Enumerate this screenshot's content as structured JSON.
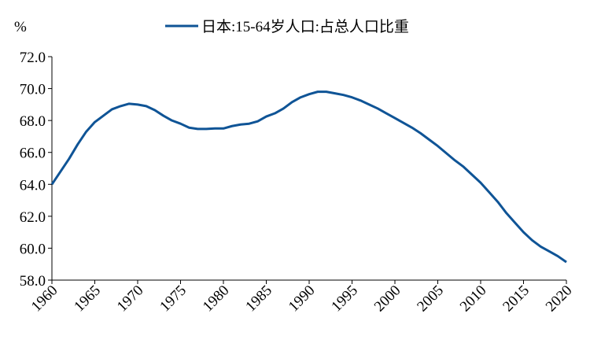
{
  "chart_data": {
    "type": "line",
    "ylabel": "%",
    "x": [
      1960,
      1961,
      1962,
      1963,
      1964,
      1965,
      1966,
      1967,
      1968,
      1969,
      1970,
      1971,
      1972,
      1973,
      1974,
      1975,
      1976,
      1977,
      1978,
      1979,
      1980,
      1981,
      1982,
      1983,
      1984,
      1985,
      1986,
      1987,
      1988,
      1989,
      1990,
      1991,
      1992,
      1993,
      1994,
      1995,
      1996,
      1997,
      1998,
      1999,
      2000,
      2001,
      2002,
      2003,
      2004,
      2005,
      2006,
      2007,
      2008,
      2009,
      2010,
      2011,
      2012,
      2013,
      2014,
      2015,
      2016,
      2017,
      2018,
      2019,
      2020
    ],
    "series": [
      {
        "name": "日本:15-64岁人口:占总人口比重",
        "color": "#0f5496",
        "values": [
          64.0,
          64.8,
          65.6,
          66.5,
          67.3,
          67.9,
          68.3,
          68.7,
          68.9,
          69.05,
          69.0,
          68.9,
          68.65,
          68.3,
          68.0,
          67.8,
          67.55,
          67.47,
          67.47,
          67.5,
          67.5,
          67.65,
          67.75,
          67.8,
          67.95,
          68.25,
          68.45,
          68.75,
          69.15,
          69.45,
          69.65,
          69.8,
          69.8,
          69.7,
          69.6,
          69.45,
          69.25,
          69.0,
          68.75,
          68.45,
          68.15,
          67.85,
          67.55,
          67.2,
          66.8,
          66.4,
          65.95,
          65.5,
          65.1,
          64.6,
          64.1,
          63.5,
          62.9,
          62.2,
          61.6,
          61.0,
          60.5,
          60.1,
          59.8,
          59.5,
          59.13
        ]
      }
    ],
    "xlim": [
      1960,
      2020
    ],
    "xticks": [
      1960,
      1965,
      1970,
      1975,
      1980,
      1985,
      1990,
      1995,
      2000,
      2005,
      2010,
      2015,
      2020
    ],
    "ylim": [
      58,
      72
    ],
    "yticks": [
      {
        "value": 58,
        "label": "58.0"
      },
      {
        "value": 60,
        "label": "60.0"
      },
      {
        "value": 62,
        "label": "62.0"
      },
      {
        "value": 64,
        "label": "64.0"
      },
      {
        "value": 66,
        "label": "66.0"
      },
      {
        "value": 68,
        "label": "68.0"
      },
      {
        "value": 70,
        "label": "70.0"
      },
      {
        "value": 72,
        "label": "72.0"
      }
    ],
    "grid": false
  }
}
